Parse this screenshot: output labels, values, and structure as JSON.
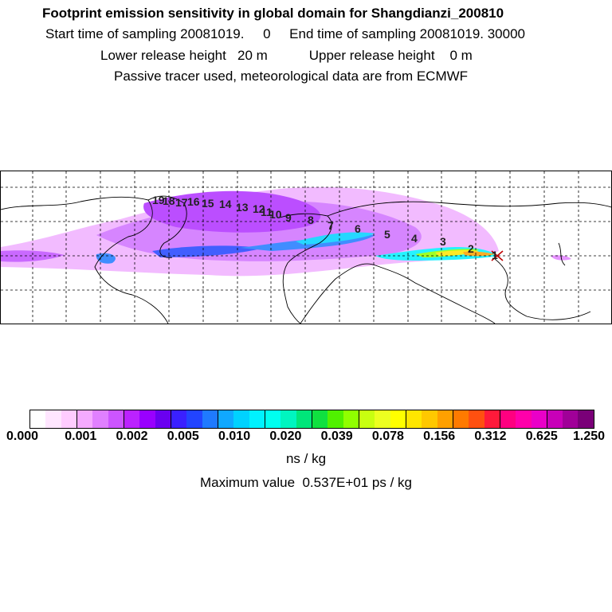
{
  "header": {
    "title": "Footprint emission sensitivity in global domain for Shangdianzi_200810",
    "line2": "Start time of sampling 20081019.     0     End time of sampling 20081019. 30000",
    "line3": "Lower release height   20 m           Upper release height    0 m",
    "line4": "Passive tracer used, meteorological data are from ECMWF"
  },
  "map": {
    "trajectory_labels": [
      "1",
      "2",
      "3",
      "4",
      "5",
      "6",
      "7",
      "8",
      "9",
      "10",
      "11",
      "12",
      "13",
      "14",
      "15",
      "16",
      "17",
      "18",
      "19"
    ],
    "colors": {
      "ocean": "#ffffff",
      "coast": "#000000",
      "grid": "#000000"
    }
  },
  "colorbar": {
    "tick_labels": [
      "0.000",
      "0.001",
      "0.002",
      "0.005",
      "0.010",
      "0.020",
      "0.039",
      "0.078",
      "0.156",
      "0.312",
      "0.625",
      "1.250"
    ],
    "colors": [
      "#ffffff",
      "#ffe6ff",
      "#ffccff",
      "#f5aaff",
      "#e080ff",
      "#cc55ff",
      "#bb22ff",
      "#9900ff",
      "#6a00f0",
      "#3a20ff",
      "#2244ff",
      "#1f7aff",
      "#10a8ff",
      "#00d2ff",
      "#00f2ff",
      "#00fff0",
      "#00f5c0",
      "#00e67a",
      "#10e040",
      "#50f000",
      "#90ff00",
      "#c8ff10",
      "#ecff20",
      "#ffff00",
      "#ffe600",
      "#ffc800",
      "#ffa000",
      "#ff7a00",
      "#ff5010",
      "#ff1a3a",
      "#ff0080",
      "#ff00aa",
      "#ea00c8",
      "#c800b8",
      "#a00098",
      "#7a0078"
    ],
    "unit": "ns / kg",
    "max_value": "Maximum value  0.537E+01 ps / kg"
  }
}
